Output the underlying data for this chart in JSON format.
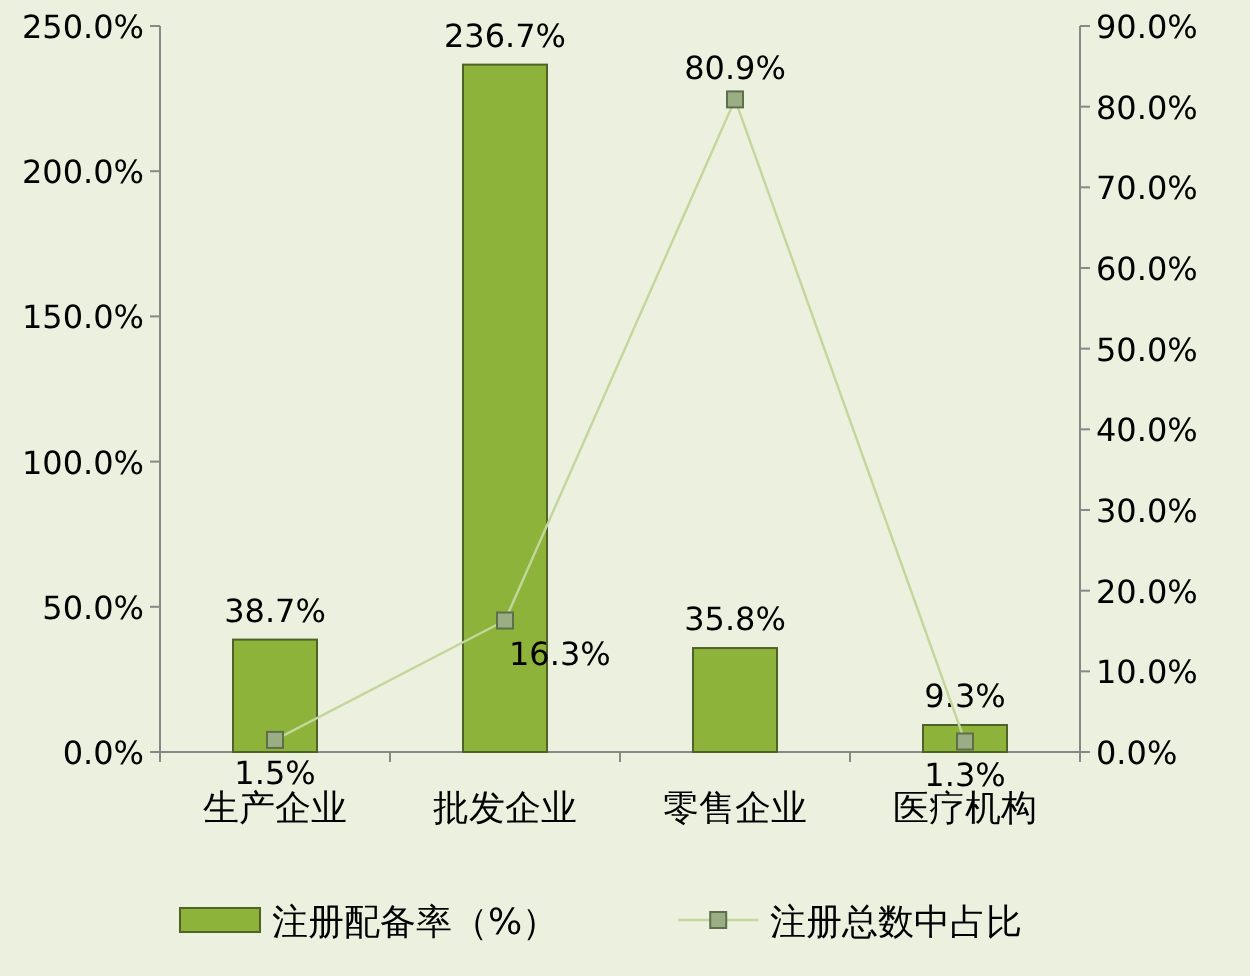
{
  "chart_data": {
    "type": "bar",
    "categories": [
      "生产企业",
      "批发企业",
      "零售企业",
      "医疗机构"
    ],
    "series": [
      {
        "name": "注册配备率（%）",
        "color": "#8db33a",
        "values": [
          38.7,
          236.7,
          35.8,
          9.3
        ],
        "value_labels": [
          "38.7%",
          "236.7%",
          "35.8%",
          "9.3%"
        ]
      },
      {
        "name": "注册总数中占比",
        "type": "line",
        "axis": "y2",
        "color": "#c3d69b",
        "marker": "square",
        "values": [
          1.5,
          16.3,
          80.9,
          1.3
        ],
        "value_labels": [
          "1.5%",
          "16.3%",
          "80.9%",
          "1.3%"
        ]
      }
    ],
    "ylim": [
      0,
      250
    ],
    "yticks": [
      {
        "value": 0,
        "label": "0.0%"
      },
      {
        "value": 50,
        "label": "50.0%"
      },
      {
        "value": 100,
        "label": "100.0%"
      },
      {
        "value": 150,
        "label": "150.0%"
      },
      {
        "value": 200,
        "label": "200.0%"
      },
      {
        "value": 250,
        "label": "250.0%"
      }
    ],
    "y2lim": [
      0,
      90
    ],
    "y2ticks": [
      {
        "value": 0,
        "label": "0.0%"
      },
      {
        "value": 10,
        "label": "10.0%"
      },
      {
        "value": 20,
        "label": "20.0%"
      },
      {
        "value": 30,
        "label": "30.0%"
      },
      {
        "value": 40,
        "label": "40.0%"
      },
      {
        "value": 50,
        "label": "50.0%"
      },
      {
        "value": 60,
        "label": "60.0%"
      },
      {
        "value": 70,
        "label": "70.0%"
      },
      {
        "value": 80,
        "label": "80.0%"
      },
      {
        "value": 90,
        "label": "90.0%"
      }
    ],
    "legend": "bottom"
  }
}
